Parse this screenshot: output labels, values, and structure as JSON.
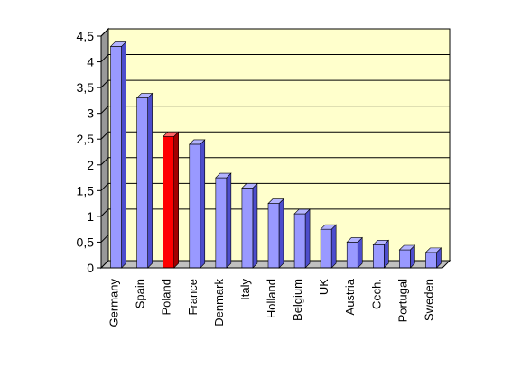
{
  "chart_data": {
    "type": "bar",
    "categories": [
      "Germany",
      "Spain",
      "Poland",
      "France",
      "Denmark",
      "Italy",
      "Holland",
      "Belgium",
      "UK",
      "Austria",
      "Cech.",
      "Portugal",
      "Sweden"
    ],
    "values": [
      4.3,
      3.3,
      2.55,
      2.4,
      1.75,
      1.55,
      1.25,
      1.05,
      0.75,
      0.5,
      0.45,
      0.35,
      0.3
    ],
    "yticks": [
      "0",
      "0,5",
      "1",
      "1,5",
      "2",
      "2,5",
      "3",
      "3,5",
      "4",
      "4,5"
    ],
    "ylim": [
      0,
      4.5
    ],
    "grid": true,
    "highlight_category": "Poland",
    "colors": {
      "bar": "#9999ff",
      "bar_side": "#4d4dcc",
      "bar_top": "#b3b3ff",
      "highlight": "#ff0000",
      "highlight_side": "#a30000",
      "highlight_top": "#ff6666",
      "plot_background": "#ffffcc",
      "left_wall": "#999999",
      "floor": "#c0c0c0",
      "gridline": "#000000"
    }
  }
}
